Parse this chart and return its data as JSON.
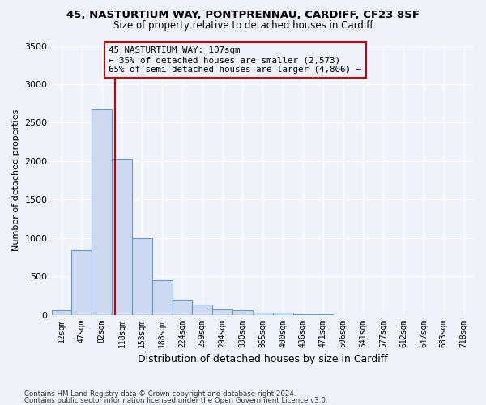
{
  "title1": "45, NASTURTIUM WAY, PONTPRENNAU, CARDIFF, CF23 8SF",
  "title2": "Size of property relative to detached houses in Cardiff",
  "xlabel": "Distribution of detached houses by size in Cardiff",
  "ylabel": "Number of detached properties",
  "footer1": "Contains HM Land Registry data © Crown copyright and database right 2024.",
  "footer2": "Contains public sector information licensed under the Open Government Licence v3.0.",
  "bin_labels": [
    "12sqm",
    "47sqm",
    "82sqm",
    "118sqm",
    "153sqm",
    "188sqm",
    "224sqm",
    "259sqm",
    "294sqm",
    "330sqm",
    "365sqm",
    "400sqm",
    "436sqm",
    "471sqm",
    "506sqm",
    "541sqm",
    "577sqm",
    "612sqm",
    "647sqm",
    "683sqm",
    "718sqm"
  ],
  "bar_values": [
    60,
    840,
    2670,
    2030,
    1000,
    450,
    200,
    130,
    65,
    55,
    30,
    30,
    10,
    5,
    0,
    0,
    0,
    0,
    0,
    0,
    0
  ],
  "bar_color": "#ccd9f0",
  "bar_edge_color": "#6699cc",
  "property_line_x": 2.65,
  "property_line_color": "#cc0000",
  "annotation_text": "45 NASTURTIUM WAY: 107sqm\n← 35% of detached houses are smaller (2,573)\n65% of semi-detached houses are larger (4,806) →",
  "annotation_box_facecolor": "#eef2fb",
  "annotation_box_edgecolor": "#cc0000",
  "ylim": [
    0,
    3500
  ],
  "yticks": [
    0,
    500,
    1000,
    1500,
    2000,
    2500,
    3000,
    3500
  ],
  "bg_color": "#eef2fb",
  "grid_color": "#ffffff"
}
